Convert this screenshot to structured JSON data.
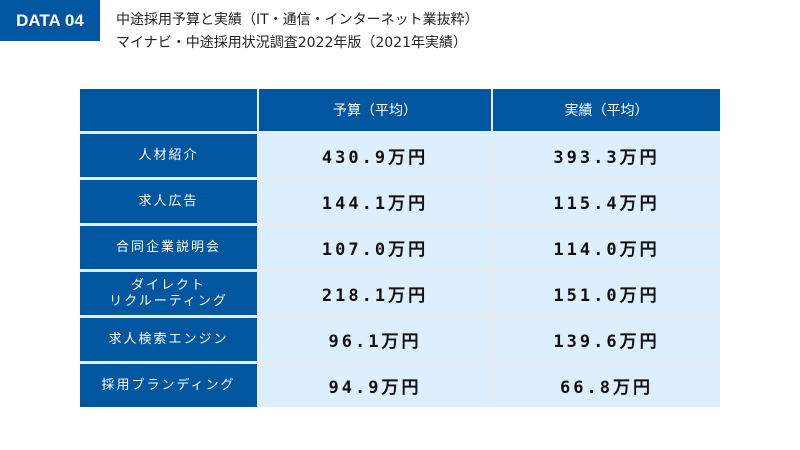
{
  "badge": "DATA 04",
  "title_line1": "中途採用予算と実績（IT・通信・インターネット業抜粋）",
  "title_line2": "マイナビ・中途採用状況調査2022年版（2021年実績）",
  "colors": {
    "header_blue": "#0057a0",
    "cell_light": "#ddeefc"
  },
  "chart_data": {
    "type": "table",
    "columns": [
      "",
      "予算（平均）",
      "実績（平均）"
    ],
    "rows": [
      {
        "label": "人材紹介",
        "budget": "430.9万円",
        "actual": "393.3万円"
      },
      {
        "label": "求人広告",
        "budget": "144.1万円",
        "actual": "115.4万円"
      },
      {
        "label": "合同企業説明会",
        "budget": "107.0万円",
        "actual": "114.0万円"
      },
      {
        "label": "ダイレクト\nリクルーティング",
        "budget": "218.1万円",
        "actual": "151.0万円"
      },
      {
        "label": "求人検索エンジン",
        "budget": "96.1万円",
        "actual": "139.6万円"
      },
      {
        "label": "採用ブランディング",
        "budget": "94.9万円",
        "actual": "66.8万円"
      }
    ]
  }
}
